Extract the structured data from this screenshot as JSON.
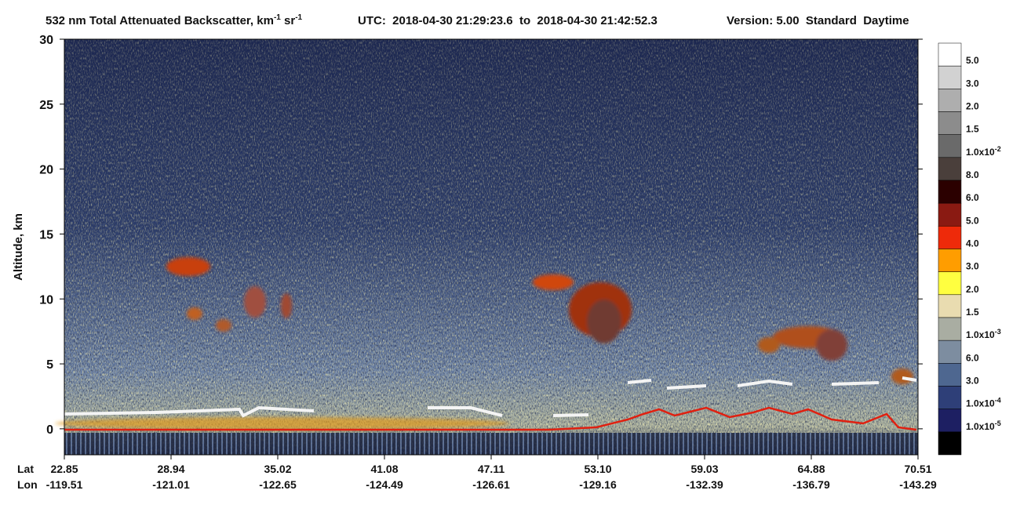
{
  "chart_data": {
    "type": "curtain",
    "title": {
      "text": "532 nm Total Attenuated Backscatter, km",
      "sup1": "-1",
      "mid": " sr",
      "sup2": "-1"
    },
    "utc": "UTC:  2018-04-30 21:29:23.6  to  2018-04-30 21:42:52.3",
    "version": "Version: 5.00  Standard  Daytime",
    "ylabel": "Altitude, km",
    "ylim": [
      -2,
      30
    ],
    "yticks": [
      0,
      5,
      10,
      15,
      20,
      25,
      30
    ],
    "xrows": [
      {
        "name": "Lat",
        "labels": [
          "22.85",
          "28.94",
          "35.02",
          "41.08",
          "47.11",
          "53.10",
          "59.03",
          "64.88",
          "70.51"
        ]
      },
      {
        "name": "Lon",
        "labels": [
          "-119.51",
          "-121.01",
          "-122.65",
          "-124.49",
          "-126.61",
          "-129.16",
          "-132.39",
          "-136.79",
          "-143.29"
        ]
      }
    ],
    "colorbar": {
      "colors": [
        "#ffffff",
        "#d2d2d2",
        "#aeaeae",
        "#8c8c8c",
        "#6a6a6a",
        "#4a3f3b",
        "#2b0000",
        "#8a1a12",
        "#ee2a0a",
        "#ff9d00",
        "#ffff40",
        "#e9dcb0",
        "#a9ada2",
        "#7d8da0",
        "#4e6790",
        "#2e3f78",
        "#1d1f62",
        "#000000"
      ],
      "labels": [
        {
          "text": "5.0"
        },
        {
          "text": "3.0"
        },
        {
          "text": "2.0"
        },
        {
          "text": "1.5"
        },
        {
          "text": "1.0x10",
          "sup": "-2"
        },
        {
          "text": "8.0"
        },
        {
          "text": "6.0"
        },
        {
          "text": "5.0"
        },
        {
          "text": "4.0"
        },
        {
          "text": "3.0"
        },
        {
          "text": "2.0"
        },
        {
          "text": "1.5"
        },
        {
          "text": "1.0x10",
          "sup": "-3"
        },
        {
          "text": "6.0"
        },
        {
          "text": "3.0"
        },
        {
          "text": "1.0x10",
          "sup": "-4"
        },
        {
          "text": "1.0x10",
          "sup": "-5"
        }
      ]
    }
  }
}
